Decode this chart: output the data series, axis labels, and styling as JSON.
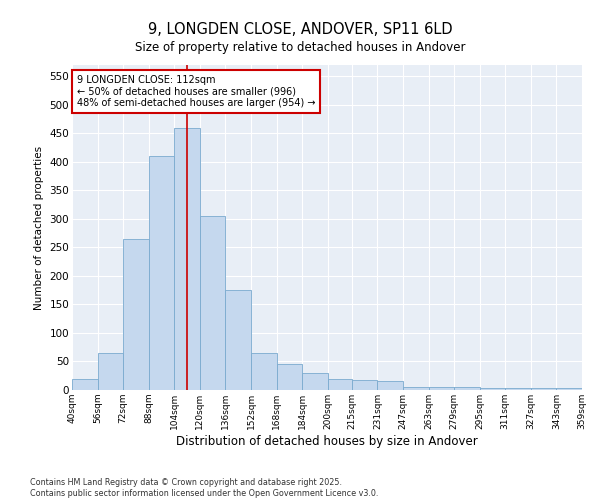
{
  "title_line1": "9, LONGDEN CLOSE, ANDOVER, SP11 6LD",
  "title_line2": "Size of property relative to detached houses in Andover",
  "xlabel": "Distribution of detached houses by size in Andover",
  "ylabel": "Number of detached properties",
  "footnote": "Contains HM Land Registry data © Crown copyright and database right 2025.\nContains public sector information licensed under the Open Government Licence v3.0.",
  "annotation_title": "9 LONGDEN CLOSE: 112sqm",
  "annotation_line2": "← 50% of detached houses are smaller (996)",
  "annotation_line3": "48% of semi-detached houses are larger (954) →",
  "property_size": 112,
  "bar_color": "#c5d8ee",
  "bar_edge_color": "#7aaacf",
  "vline_color": "#cc0000",
  "annotation_box_color": "#cc0000",
  "background_color": "#e8eef6",
  "bins": [
    40,
    56,
    72,
    88,
    104,
    120,
    136,
    152,
    168,
    184,
    200,
    215,
    231,
    247,
    263,
    279,
    295,
    311,
    327,
    343,
    359
  ],
  "counts": [
    20,
    65,
    265,
    410,
    460,
    305,
    175,
    65,
    45,
    30,
    20,
    18,
    15,
    6,
    6,
    5,
    3,
    3,
    3,
    3
  ],
  "ylim": [
    0,
    570
  ],
  "yticks": [
    0,
    50,
    100,
    150,
    200,
    250,
    300,
    350,
    400,
    450,
    500,
    550
  ]
}
